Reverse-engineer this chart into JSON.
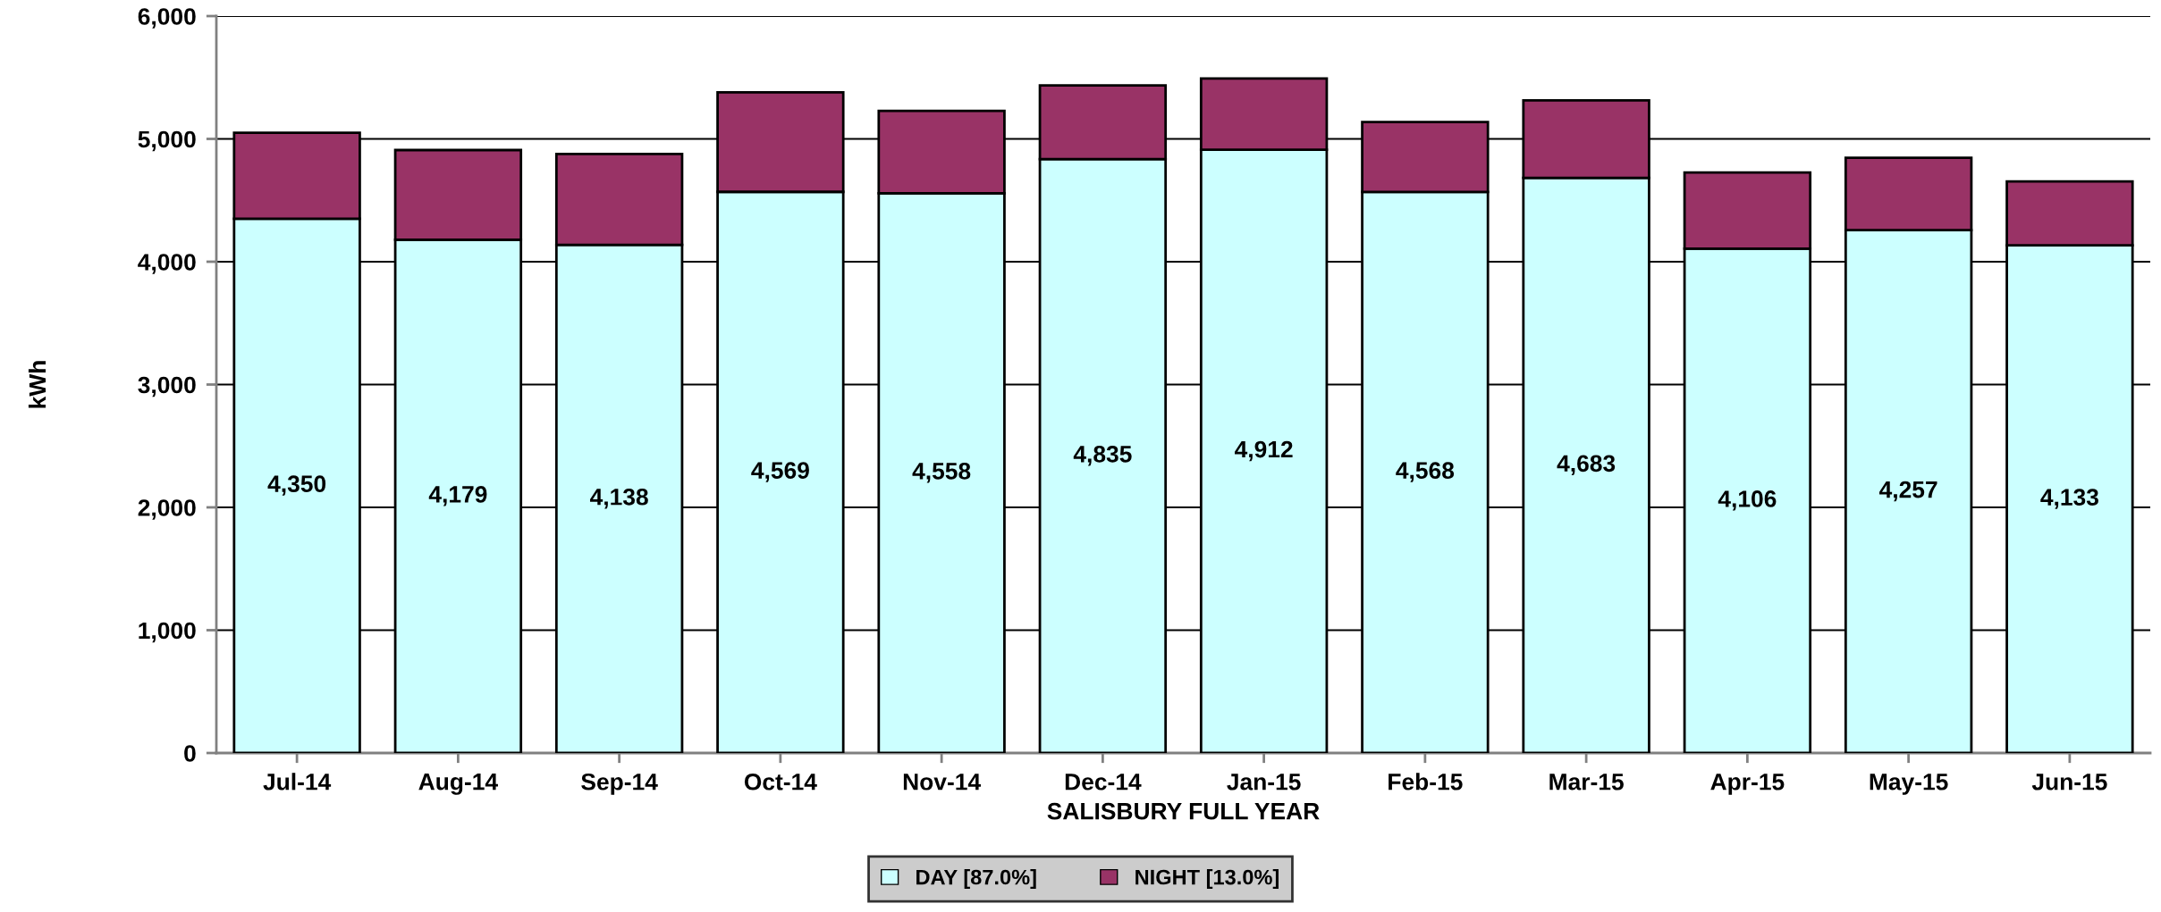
{
  "chart_data": {
    "type": "bar",
    "stacked": true,
    "xlabel": "SALISBURY FULL YEAR",
    "ylabel": "kWh",
    "categories": [
      "Jul-14",
      "Aug-14",
      "Sep-14",
      "Oct-14",
      "Nov-14",
      "Dec-14",
      "Jan-15",
      "Feb-15",
      "Mar-15",
      "Apr-15",
      "May-15",
      "Jun-15"
    ],
    "series": [
      {
        "name": "DAY [87.0%]",
        "color": "#ccffff",
        "values": [
          4350,
          4179,
          4138,
          4569,
          4558,
          4835,
          4912,
          4568,
          4683,
          4106,
          4257,
          4133
        ],
        "value_labels": [
          "4,350",
          "4,179",
          "4,138",
          "4,569",
          "4,558",
          "4,835",
          "4,912",
          "4,568",
          "4,683",
          "4,106",
          "4,257",
          "4,133"
        ]
      },
      {
        "name": "NIGHT [13.0%]",
        "color": "#993366",
        "values": [
          700,
          730,
          740,
          810,
          670,
          600,
          580,
          570,
          630,
          620,
          590,
          520
        ]
      }
    ],
    "ylim": [
      0,
      6000
    ],
    "yticks": [
      {
        "value": 0,
        "label": "0"
      },
      {
        "value": 1000,
        "label": "1,000"
      },
      {
        "value": 2000,
        "label": "2,000"
      },
      {
        "value": 3000,
        "label": "3,000"
      },
      {
        "value": 4000,
        "label": "4,000"
      },
      {
        "value": 5000,
        "label": "5,000"
      },
      {
        "value": 6000,
        "label": "6,000"
      }
    ],
    "grid": "y",
    "legend": "bottom"
  }
}
